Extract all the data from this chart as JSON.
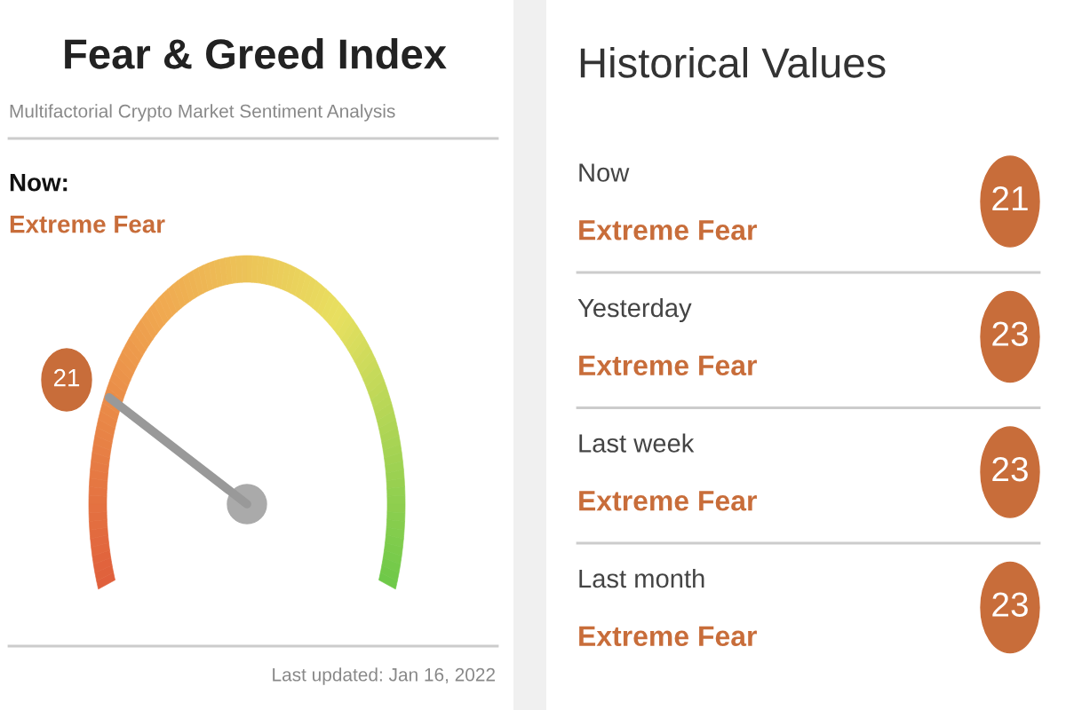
{
  "chart_data": [
    {
      "type": "other",
      "title": "Fear & Greed Index",
      "subtitle": "Multifactorial Crypto Market Sentiment Analysis",
      "categories": [
        "Extreme Fear"
      ],
      "values": [
        21
      ],
      "data_labels": true,
      "color": "#c86d3a",
      "annotations": [
        "Now:",
        "Last updated: Jan 16, 2022"
      ]
    },
    {
      "type": "other",
      "title": "Historical Values",
      "categories": [
        "Now",
        "Yesterday",
        "Last week",
        "Last month"
      ],
      "values": [
        21,
        23,
        23,
        23
      ],
      "data_labels": true,
      "color": "#c86d3a",
      "annotations": [
        "Extreme Fear",
        "Extreme Fear",
        "Extreme Fear",
        "Extreme Fear"
      ]
    }
  ]
}
